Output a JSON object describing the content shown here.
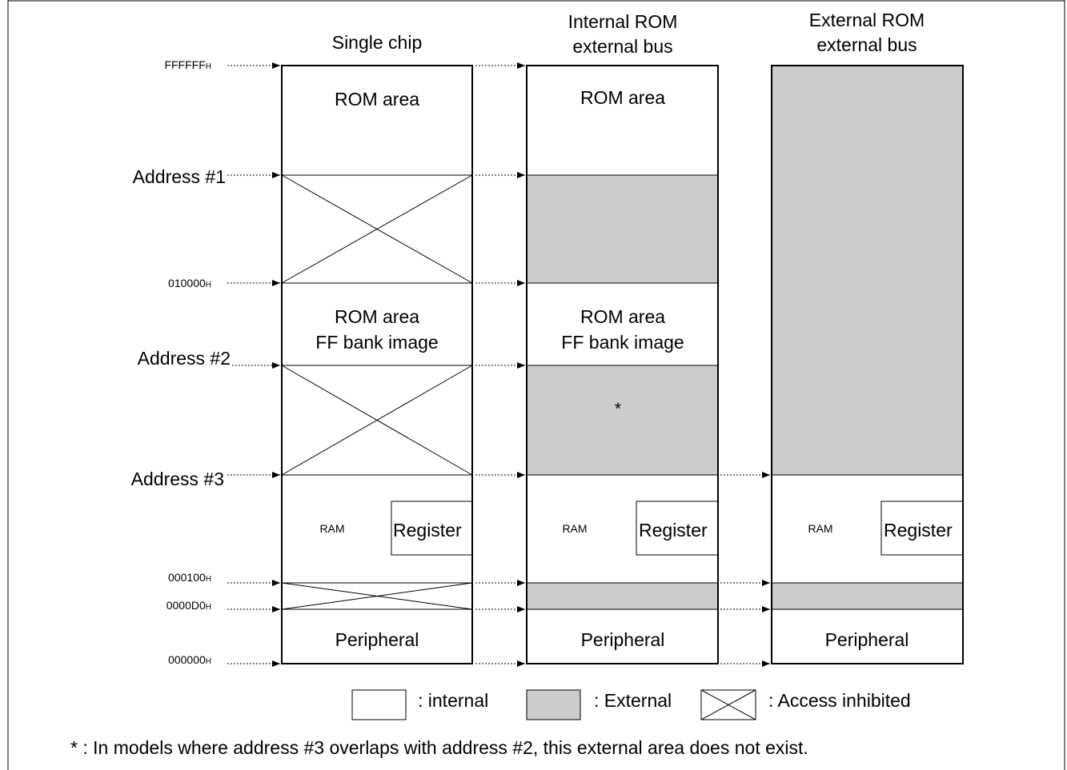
{
  "columns": [
    {
      "title_line1": "Single chip",
      "title_line2": ""
    },
    {
      "title_line1": "Internal ROM",
      "title_line2": "external bus"
    },
    {
      "title_line1": "External ROM",
      "title_line2": "external bus"
    }
  ],
  "addresses": {
    "top": {
      "main": "FFFFFF",
      "suffix": "H"
    },
    "addr1": "Address #1",
    "a010000": {
      "main": "010000",
      "suffix": "H"
    },
    "addr2": "Address #2",
    "addr3": "Address #3",
    "a000100": {
      "main": "000100",
      "suffix": "H"
    },
    "a0000D0": {
      "main": "0000D0",
      "suffix": "H"
    },
    "a000000": {
      "main": "000000",
      "suffix": "H"
    }
  },
  "labels": {
    "rom_area": "ROM area",
    "rom_area_ff_line1": "ROM area",
    "rom_area_ff_line2": "FF bank image",
    "ram": "RAM",
    "register": "Register",
    "peripheral": "Peripheral",
    "asterisk": "*"
  },
  "legend": {
    "internal": ": internal",
    "external": ": External",
    "inhibited": ": Access inhibited"
  },
  "footnote": "* : In models where address #3 overlaps with address #2, this external area does not exist.",
  "colors": {
    "external_fill": "#cccccc",
    "line": "#000000",
    "background": "#ffffff"
  }
}
